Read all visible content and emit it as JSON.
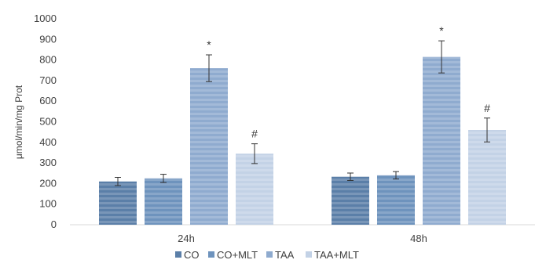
{
  "chart_data": {
    "type": "bar",
    "title": "",
    "xlabel": "",
    "ylabel": "μmol/min/mg Prot",
    "ylim": [
      0,
      1000
    ],
    "yticks": [
      "0",
      "100",
      "200",
      "300",
      "400",
      "500",
      "600",
      "700",
      "800",
      "900",
      "1000"
    ],
    "categories": [
      "24h",
      "48h"
    ],
    "grid": false,
    "legend_position": "bottom",
    "series": [
      {
        "name": "CO",
        "values": [
          210,
          233
        ],
        "errors": [
          20,
          18
        ],
        "annotations": [
          "",
          ""
        ],
        "color": "#5b7fa8"
      },
      {
        "name": "CO+MLT",
        "values": [
          225,
          240
        ],
        "errors": [
          20,
          18
        ],
        "annotations": [
          "",
          ""
        ],
        "color": "#6e93bd"
      },
      {
        "name": "TAA",
        "values": [
          760,
          815
        ],
        "errors": [
          65,
          78
        ],
        "annotations": [
          "*",
          "*"
        ],
        "color": "#8fabcf"
      },
      {
        "name": "TAA+MLT",
        "values": [
          345,
          460
        ],
        "errors": [
          48,
          58
        ],
        "annotations": [
          "#",
          "#"
        ],
        "color": "#c3d2e6"
      }
    ]
  }
}
